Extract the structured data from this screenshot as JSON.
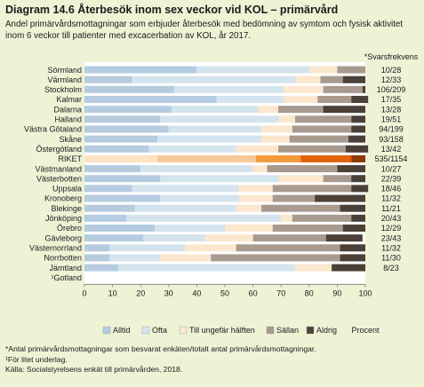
{
  "title": "Diagram 14.6 Återbesök inom sex veckor vid KOL – primärvård",
  "subtitle": "Andel primärvårdsmottagningar som erbjuder återbesök med bedömning av symtom och fysisk aktivitet inom 6 veckor till patienter med excacerbation av KOL, år 2017.",
  "footnotes": [
    "*Antal primärvårdsmottagningar som besvarat enkäten/totalt antal primärvårdsmottagningar.",
    "¹För litet underlag.",
    "Källa: Socialstyrelsens enkät till primärvården, 2018."
  ],
  "colors": {
    "Alltid": "#b5cce0",
    "Ofta": "#d4e4ee",
    "Till ungefär hälften": "#fbe7cd",
    "Sällan": "#a89a8e",
    "Aldrig": "#4a4038",
    "riket_Alltid": "#fde3c3",
    "riket_Ofta": "#f7c998",
    "riket_Till ungefär hälften": "#f39a3a",
    "riket_Sällan": "#e2620c",
    "riket_Aldrig": "#8c3a06",
    "frame": "#eef3d6"
  },
  "chart_data": {
    "type": "bar",
    "orientation": "horizontal",
    "stacked": true,
    "categories": [
      "Sörmland",
      "Värmland",
      "Stockholm",
      "Kalmar",
      "Dalarna",
      "Halland",
      "Västra Götaland",
      "Skåne",
      "Östergötland",
      "RIKET",
      "Västmanland",
      "Västerbotten",
      "Uppsala",
      "Kronoberg",
      "Blekinge",
      "Jönköping",
      "Örebro",
      "Gävleborg",
      "Västernorrland",
      "Norrbotten",
      "Jämtland",
      "¹Gotland"
    ],
    "series": [
      {
        "name": "Alltid",
        "values": [
          40,
          17,
          32,
          47,
          31,
          27,
          30,
          26,
          23,
          26,
          20,
          27,
          17,
          27,
          18,
          15,
          25,
          21,
          9,
          9,
          12,
          null
        ]
      },
      {
        "name": "Ofta",
        "values": [
          40,
          58,
          39,
          24,
          31,
          42,
          33,
          37,
          31,
          35,
          40,
          42,
          38,
          28,
          36,
          55,
          25,
          22,
          27,
          18,
          63,
          null
        ]
      },
      {
        "name": "Till ungefär hälften",
        "values": [
          10,
          9,
          14,
          12,
          7,
          6,
          11,
          10,
          15,
          16,
          5,
          16,
          12,
          12,
          9,
          4,
          17,
          17,
          18,
          18,
          13,
          null
        ]
      },
      {
        "name": "Sällan",
        "values": [
          10,
          8,
          14,
          12,
          16,
          20,
          21,
          21,
          24,
          18,
          25,
          10,
          28,
          15,
          28,
          21,
          25,
          26,
          37,
          46,
          0,
          null
        ]
      },
      {
        "name": "Aldrig",
        "values": [
          0,
          8,
          1,
          6,
          15,
          5,
          5,
          6,
          8,
          5,
          10,
          5,
          6,
          18,
          9,
          5,
          8,
          13,
          9,
          9,
          12,
          null
        ]
      }
    ],
    "response": [
      "10/28",
      "12/33",
      "106/209",
      "17/35",
      "13/28",
      "19/51",
      "94/199",
      "93/158",
      "13/42",
      "535/1154",
      "10/27",
      "22/39",
      "18/46",
      "11/32",
      "11/21",
      "20/43",
      "12/29",
      "23/43",
      "11/32",
      "11/30",
      "8/23",
      ""
    ],
    "highlight_category": "RIKET",
    "response_header": "*Svarsfrekvens",
    "xlabel": "Procent",
    "xlim": [
      0,
      100
    ],
    "xticks": [
      0,
      10,
      20,
      30,
      40,
      50,
      60,
      70,
      80,
      90,
      100
    ],
    "grid": false,
    "legend": "bottom"
  }
}
